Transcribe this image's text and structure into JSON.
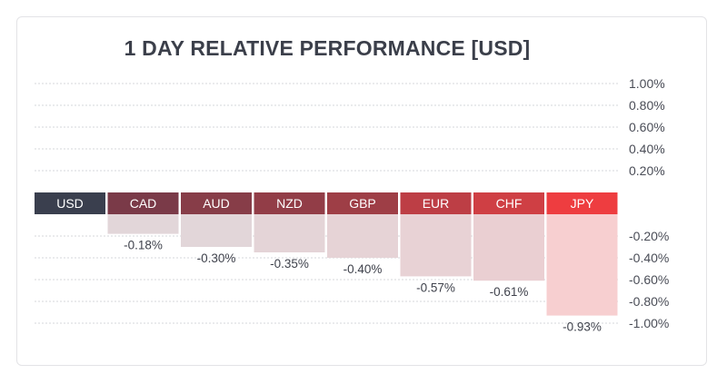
{
  "chart_data": {
    "type": "bar",
    "title": "1 DAY RELATIVE PERFORMANCE  [USD]",
    "categories": [
      "USD",
      "CAD",
      "AUD",
      "NZD",
      "GBP",
      "EUR",
      "CHF",
      "JPY"
    ],
    "values": [
      0.0,
      -0.18,
      -0.3,
      -0.35,
      -0.4,
      -0.57,
      -0.61,
      -0.93
    ],
    "value_labels": [
      "",
      "-0.18%",
      "-0.30%",
      "-0.35%",
      "-0.40%",
      "-0.57%",
      "-0.61%",
      "-0.93%"
    ],
    "category_colors": [
      "#3a3f4e",
      "#7a3a48",
      "#873d48",
      "#923d47",
      "#9e3e46",
      "#bd3e45",
      "#cf3f44",
      "#ee3d40"
    ],
    "bar_fill_colors": [
      "#e2dcdf",
      "#e2d6d9",
      "#e2d6d9",
      "#e4d4d7",
      "#e6d3d6",
      "#e8d2d5",
      "#eacfd2",
      "#f7cfd0"
    ],
    "y_ticks_positive": [
      "1.00%",
      "0.80%",
      "0.60%",
      "0.40%",
      "0.20%"
    ],
    "y_ticks_negative": [
      "-0.20%",
      "-0.40%",
      "-0.60%",
      "-0.80%",
      "-1.00%"
    ],
    "ylim": [
      -1.0,
      1.0
    ],
    "grid": true,
    "legend": "none"
  }
}
